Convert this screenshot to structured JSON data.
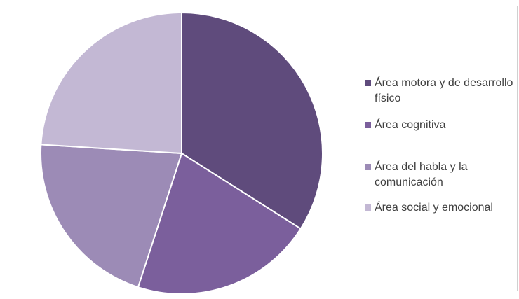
{
  "chart_data": {
    "type": "pie",
    "title": "",
    "categories": [
      "Área motora y de desarrollo físico",
      "Área cognitiva",
      "Área del habla y la comunicación",
      "Área social y emocional"
    ],
    "values": [
      34,
      21,
      21,
      24
    ],
    "colors": [
      "#5f4b7c",
      "#7b5f9c",
      "#9c8bb6",
      "#c3b8d4"
    ],
    "legend_position": "right"
  }
}
